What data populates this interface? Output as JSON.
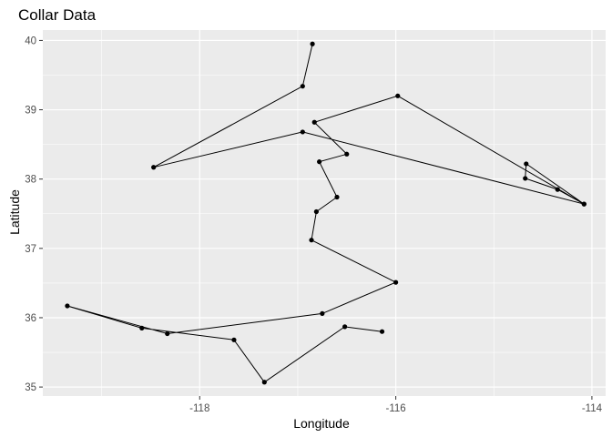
{
  "chart_data": {
    "type": "line",
    "title": "Collar Data",
    "xlabel": "Longitude",
    "ylabel": "Latitude",
    "xlim": [
      -119.6,
      -113.86
    ],
    "ylim": [
      34.87,
      40.15
    ],
    "x_ticks": [
      -118,
      -116,
      -114
    ],
    "x_tick_labels": [
      "-118",
      "-116",
      "-114"
    ],
    "y_ticks": [
      35,
      36,
      37,
      38,
      39,
      40
    ],
    "y_tick_labels": [
      "35",
      "36",
      "37",
      "38",
      "39",
      "40"
    ],
    "grid": true,
    "panel_color": "#ebebeb",
    "grid_color": "#ffffff",
    "line_color": "#000000",
    "point_color": "#000000",
    "series": [
      {
        "points": [
          {
            "x": -116.85,
            "y": 39.95
          },
          {
            "x": -116.95,
            "y": 39.34
          },
          {
            "x": -118.47,
            "y": 38.17
          },
          {
            "x": -116.95,
            "y": 38.68
          },
          {
            "x": -114.08,
            "y": 37.64
          },
          {
            "x": -114.35,
            "y": 37.85
          },
          {
            "x": -114.68,
            "y": 38.01
          },
          {
            "x": -114.67,
            "y": 38.22
          },
          {
            "x": -114.08,
            "y": 37.64
          },
          {
            "x": -115.98,
            "y": 39.2
          },
          {
            "x": -116.83,
            "y": 38.82
          },
          {
            "x": -116.5,
            "y": 38.36
          },
          {
            "x": -116.78,
            "y": 38.25
          },
          {
            "x": -116.6,
            "y": 37.74
          },
          {
            "x": -116.81,
            "y": 37.53
          },
          {
            "x": -116.86,
            "y": 37.12
          },
          {
            "x": -116.0,
            "y": 36.51
          },
          {
            "x": -116.75,
            "y": 36.06
          },
          {
            "x": -118.33,
            "y": 35.77
          },
          {
            "x": -119.35,
            "y": 36.17
          },
          {
            "x": -118.59,
            "y": 35.85
          },
          {
            "x": -117.65,
            "y": 35.68
          },
          {
            "x": -117.34,
            "y": 35.07
          },
          {
            "x": -116.52,
            "y": 35.87
          },
          {
            "x": -116.14,
            "y": 35.8
          }
        ]
      }
    ]
  }
}
